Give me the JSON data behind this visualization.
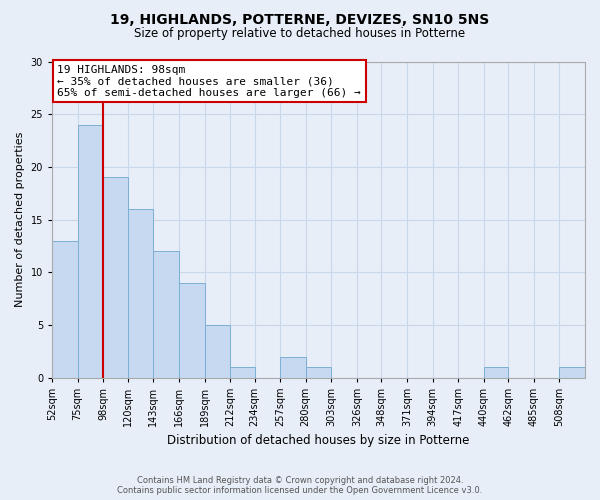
{
  "title": "19, HIGHLANDS, POTTERNE, DEVIZES, SN10 5NS",
  "subtitle": "Size of property relative to detached houses in Potterne",
  "xlabel": "Distribution of detached houses by size in Potterne",
  "ylabel": "Number of detached properties",
  "footer_line1": "Contains HM Land Registry data © Crown copyright and database right 2024.",
  "footer_line2": "Contains public sector information licensed under the Open Government Licence v3.0.",
  "bin_edges": [
    52,
    75,
    98,
    120,
    143,
    166,
    189,
    212,
    234,
    257,
    280,
    303,
    326,
    348,
    371,
    394,
    417,
    440,
    462,
    485,
    508
  ],
  "bar_heights": [
    13,
    24,
    19,
    16,
    12,
    9,
    5,
    1,
    0,
    2,
    1,
    0,
    0,
    0,
    0,
    0,
    0,
    1,
    0,
    0,
    1
  ],
  "bar_color": "#c6d9f0",
  "bar_edgecolor": "#7bafd4",
  "highlight_x": 98,
  "highlight_color": "#cc0000",
  "annotation_title": "19 HIGHLANDS: 98sqm",
  "annotation_line1": "← 35% of detached houses are smaller (36)",
  "annotation_line2": "65% of semi-detached houses are larger (66) →",
  "annotation_box_facecolor": "#ffffff",
  "annotation_box_edgecolor": "#cc0000",
  "xlim": [
    52,
    531
  ],
  "ylim": [
    0,
    30
  ],
  "yticks": [
    0,
    5,
    10,
    15,
    20,
    25,
    30
  ],
  "xtick_labels": [
    "52sqm",
    "75sqm",
    "98sqm",
    "120sqm",
    "143sqm",
    "166sqm",
    "189sqm",
    "212sqm",
    "234sqm",
    "257sqm",
    "280sqm",
    "303sqm",
    "326sqm",
    "348sqm",
    "371sqm",
    "394sqm",
    "417sqm",
    "440sqm",
    "462sqm",
    "485sqm",
    "508sqm"
  ],
  "grid_color": "#c8d8e8",
  "background_color": "#e8eef8",
  "title_fontsize": 10,
  "subtitle_fontsize": 8.5,
  "ylabel_fontsize": 8,
  "xlabel_fontsize": 8.5,
  "tick_fontsize": 7,
  "footer_fontsize": 6,
  "footer_color": "#555555"
}
